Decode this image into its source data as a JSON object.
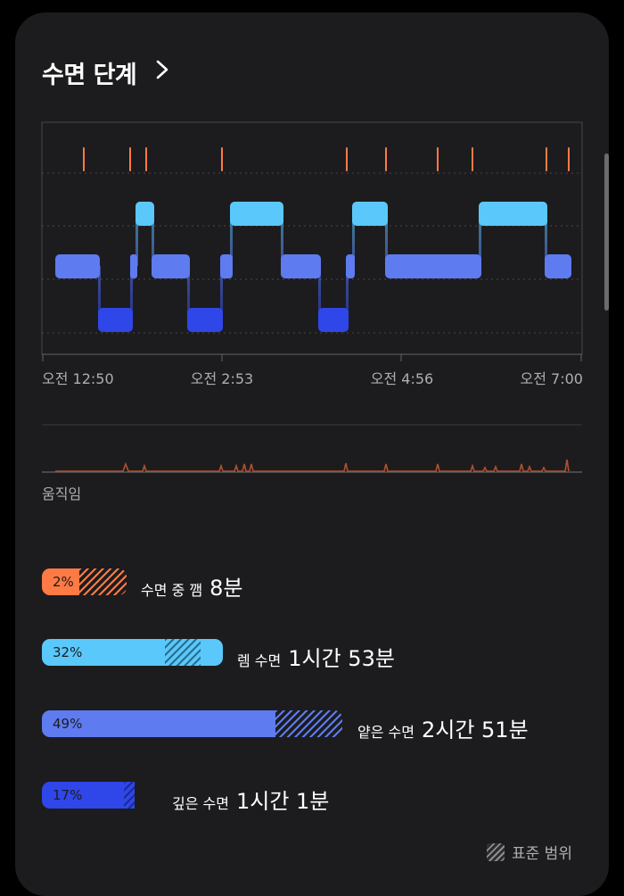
{
  "header": {
    "title": "수면 단계"
  },
  "timeline": {
    "x_labels": [
      "오전 12:50",
      "오전 2:53",
      "오전 4:56",
      "오전 7:00"
    ],
    "colors": {
      "awake": "#ff7a45",
      "rem": "#5ac8fa",
      "light": "#5e7bf0",
      "deep": "#2f47e8"
    }
  },
  "movement": {
    "label": "움직임"
  },
  "stages": [
    {
      "key": "awake",
      "percent": "2%",
      "name": "수면 중 깸",
      "duration": "8분",
      "color": "#ff7a45",
      "fill_fraction": 0.02
    },
    {
      "key": "rem",
      "percent": "32%",
      "name": "렘 수면",
      "duration": "1시간 53분",
      "color": "#5ac8fa",
      "fill_fraction": 0.32
    },
    {
      "key": "light",
      "percent": "49%",
      "name": "얕은 수면",
      "duration": "2시간 51분",
      "color": "#5e7bf0",
      "fill_fraction": 0.49
    },
    {
      "key": "deep",
      "percent": "17%",
      "name": "깊은 수면",
      "duration": "1시간 1분",
      "color": "#2f47e8",
      "fill_fraction": 0.17
    }
  ],
  "legend": {
    "label": "표준 범위"
  }
}
